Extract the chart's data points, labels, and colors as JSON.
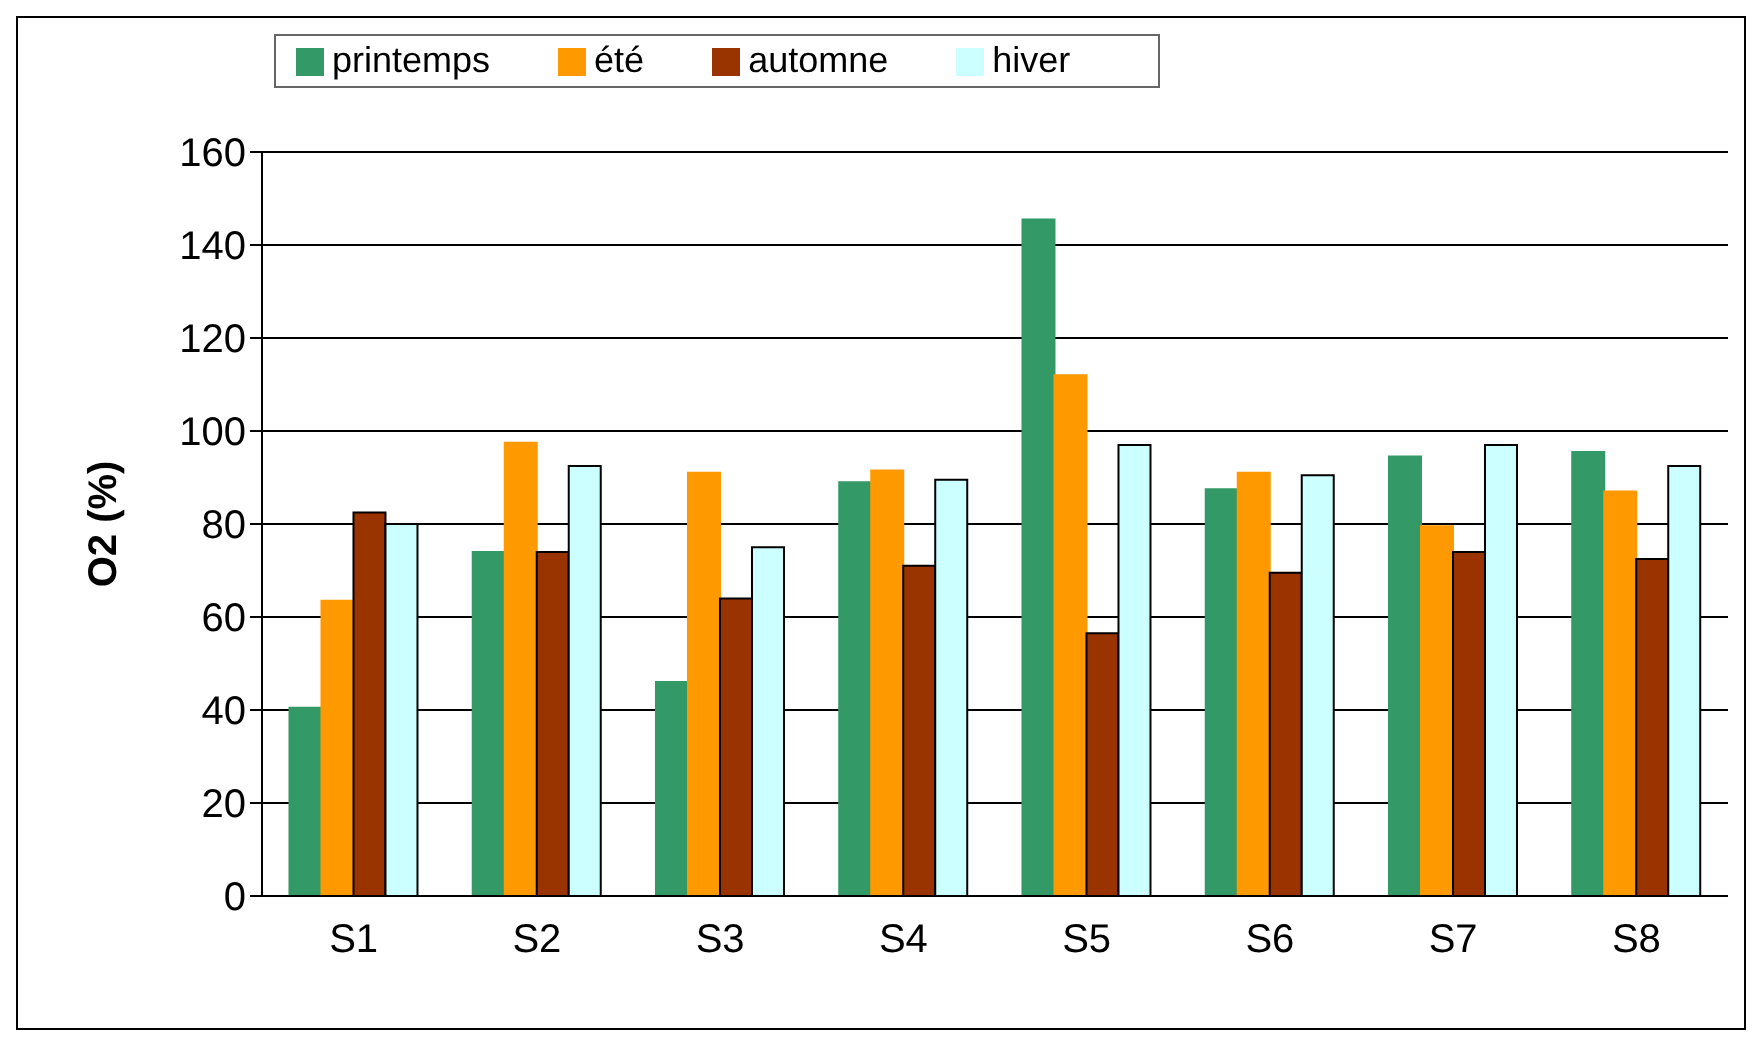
{
  "chart_data": {
    "type": "bar",
    "ylabel": "O2 (%)",
    "categories": [
      "S1",
      "S2",
      "S3",
      "S4",
      "S5",
      "S6",
      "S7",
      "S8"
    ],
    "series": [
      {
        "name": "printemps",
        "color": "#339966",
        "values": [
          40.5,
          74,
          46,
          89,
          145.5,
          87.5,
          94.5,
          95.5
        ]
      },
      {
        "name": "été",
        "color": "#ff9900",
        "values": [
          63.5,
          97.5,
          91,
          91.5,
          112,
          91,
          79.5,
          87
        ]
      },
      {
        "name": "automne",
        "color": "#993300",
        "values": [
          82.5,
          74,
          64,
          71,
          56.5,
          69.5,
          74,
          72.5
        ]
      },
      {
        "name": "hiver",
        "color": "#ccffff",
        "values": [
          80,
          92.5,
          75,
          89.5,
          97,
          90.5,
          97,
          92.5
        ]
      }
    ],
    "ylim": [
      0,
      160
    ],
    "yticks": [
      0,
      20,
      40,
      60,
      80,
      100,
      120,
      140,
      160
    ],
    "grid": "y",
    "legend": "top left"
  }
}
